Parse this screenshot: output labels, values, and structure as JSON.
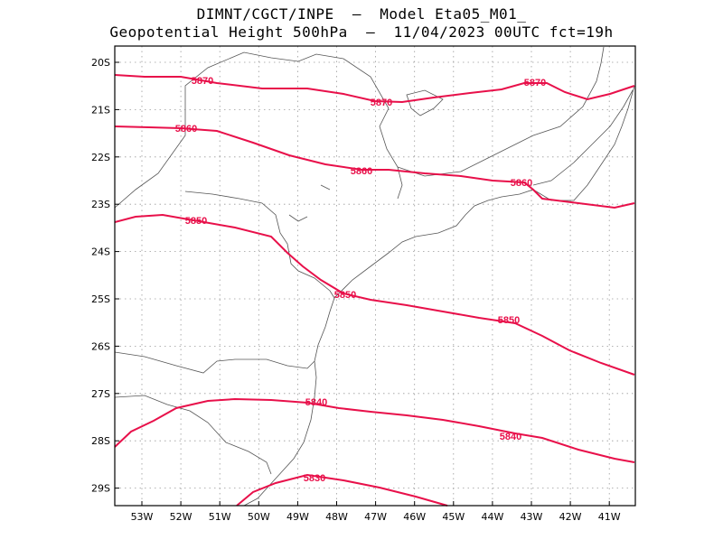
{
  "header": {
    "line1": "DIMNT/CGCT/INPE  —  Model Eta05_M01_",
    "line2": "Geopotential Height 500hPa  —  11/04/2023 00UTC fct=19h"
  },
  "colors": {
    "contour": "#e8104a",
    "coast": "#555555",
    "grid": "#9a9a9a",
    "frame": "#000000"
  },
  "axes": {
    "lon_labels": [
      "53W",
      "52W",
      "51W",
      "50W",
      "49W",
      "48W",
      "47W",
      "46W",
      "45W",
      "44W",
      "43W",
      "42W",
      "41W"
    ],
    "lat_labels": [
      "20S",
      "21S",
      "22S",
      "23S",
      "24S",
      "25S",
      "26S",
      "27S",
      "28S",
      "29S"
    ]
  },
  "contours": [
    {
      "value": "5870",
      "labels": [
        "5870",
        "5870",
        "5870"
      ]
    },
    {
      "value": "5860",
      "labels": [
        "5860",
        "5860",
        "5860"
      ]
    },
    {
      "value": "5850",
      "labels": [
        "5850",
        "5850",
        "5850"
      ]
    },
    {
      "value": "5840",
      "labels": [
        "5840",
        "5840"
      ]
    },
    {
      "value": "5830",
      "labels": [
        "5830"
      ]
    }
  ]
}
